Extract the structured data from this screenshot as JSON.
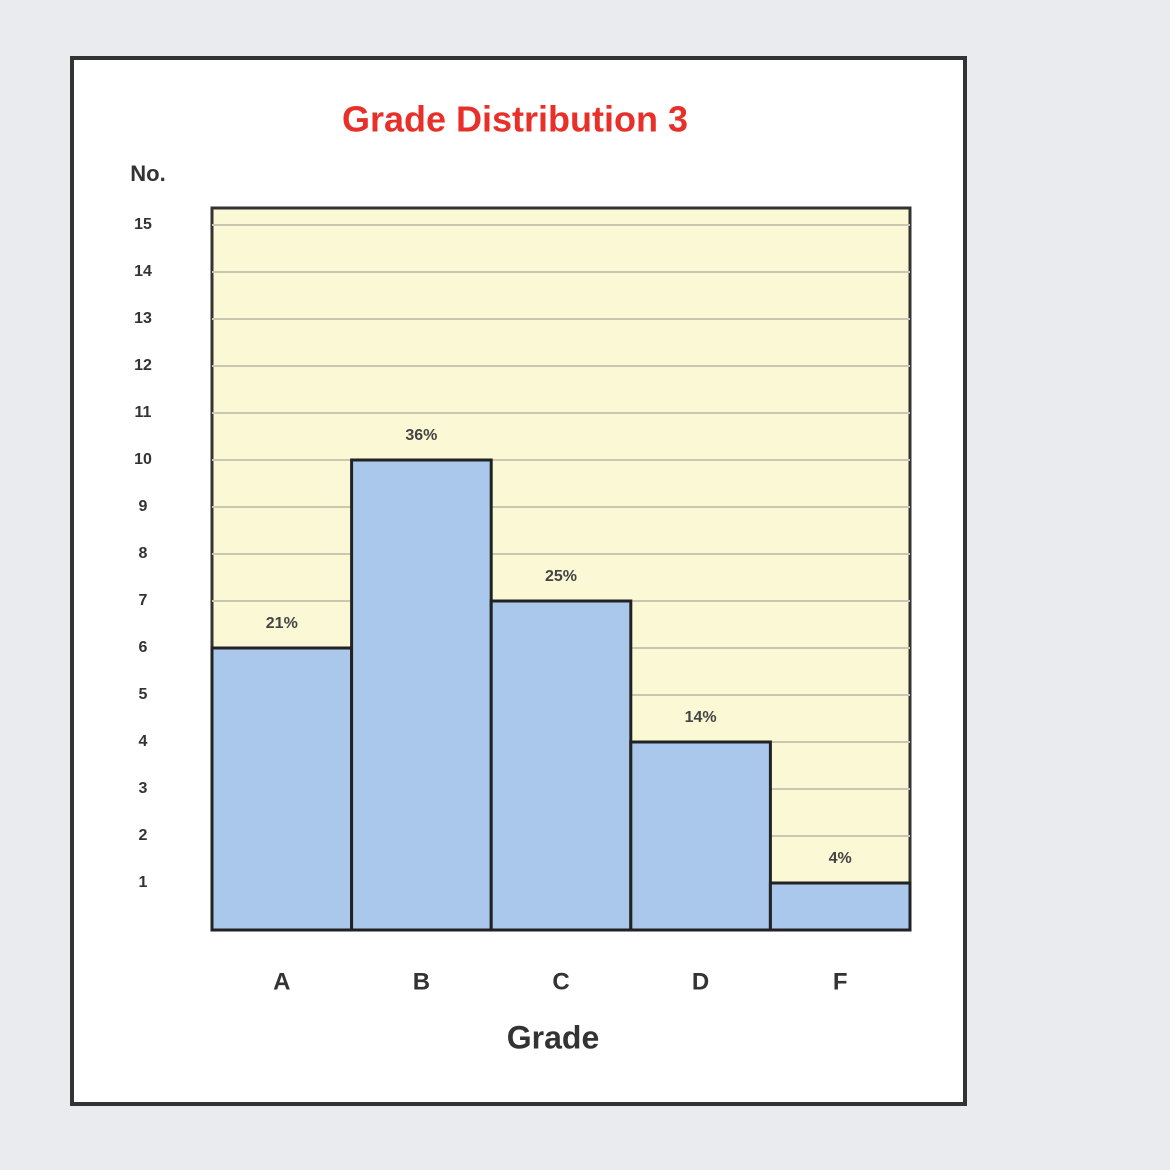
{
  "chart_data": {
    "type": "bar",
    "title": "Grade Distribution 3",
    "ylabel": "No.",
    "xlabel": "Grade",
    "categories": [
      "A",
      "B",
      "C",
      "D",
      "F"
    ],
    "values": [
      6,
      10,
      7,
      4,
      1
    ],
    "percent_labels": [
      "21%",
      "36%",
      "25%",
      "14%",
      "4%"
    ],
    "color": "#a9c8ec",
    "ylim": [
      0,
      15
    ],
    "yticks": [
      1,
      2,
      3,
      4,
      5,
      6,
      7,
      8,
      9,
      10,
      11,
      12,
      13,
      14,
      15
    ],
    "grid": true
  }
}
